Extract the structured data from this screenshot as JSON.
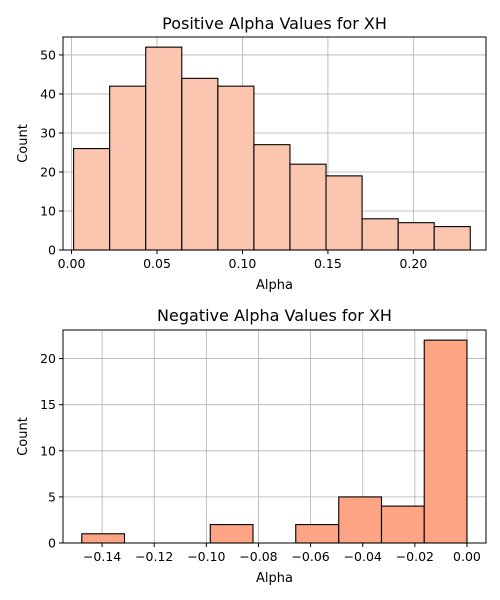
{
  "chart_data": [
    {
      "type": "bar",
      "title": "Positive Alpha Values for XH",
      "xlabel": "Alpha",
      "ylabel": "Count",
      "color": "#fcc5b0",
      "edge_color": "#000000",
      "grid": true,
      "xlim": [
        -0.005,
        0.2425
      ],
      "ylim": [
        0,
        54.6
      ],
      "xticks": [
        0.0,
        0.05,
        0.1,
        0.15,
        0.2
      ],
      "xtick_labels": [
        "0.00",
        "0.05",
        "0.10",
        "0.15",
        "0.20"
      ],
      "yticks": [
        0,
        10,
        20,
        30,
        40,
        50
      ],
      "yticks_labels": [
        "0",
        "10",
        "20",
        "30",
        "40",
        "50"
      ],
      "bin_edges": [
        0.0012,
        0.0223,
        0.0434,
        0.0645,
        0.0856,
        0.1067,
        0.1278,
        0.1489,
        0.17,
        0.1911,
        0.2122,
        0.2333
      ],
      "values": [
        26,
        42,
        52,
        44,
        42,
        27,
        22,
        19,
        8,
        7,
        6
      ]
    },
    {
      "type": "bar",
      "title": "Negative Alpha Values for XH",
      "xlabel": "Alpha",
      "ylabel": "Count",
      "color": "#fca484",
      "edge_color": "#000000",
      "grid": true,
      "xlim": [
        -0.155,
        0.0073
      ],
      "ylim": [
        0,
        23.1
      ],
      "xticks": [
        -0.14,
        -0.12,
        -0.1,
        -0.08,
        -0.06,
        -0.04,
        -0.02,
        0.0
      ],
      "xtick_labels": [
        "−0.14",
        "−0.12",
        "−0.10",
        "−0.08",
        "−0.06",
        "−0.04",
        "−0.02",
        "0.00"
      ],
      "yticks": [
        0,
        5,
        10,
        15,
        20
      ],
      "yticks_labels": [
        "0",
        "5",
        "10",
        "15",
        "20"
      ],
      "bin_edges": [
        -0.1478,
        -0.1314,
        -0.1149,
        -0.0985,
        -0.0821,
        -0.0657,
        -0.0492,
        -0.0328,
        -0.0164,
        0.0
      ],
      "values": [
        1,
        0,
        0,
        2,
        0,
        2,
        5,
        4,
        22
      ]
    }
  ]
}
